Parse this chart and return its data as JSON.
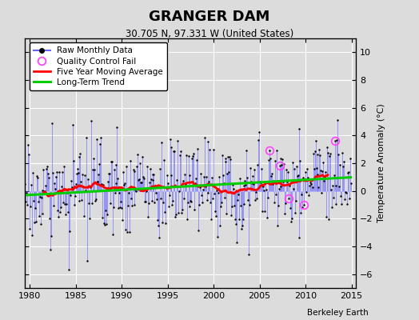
{
  "title": "GRANGER DAM",
  "subtitle": "30.705 N, 97.331 W (United States)",
  "ylabel": "Temperature Anomaly (°C)",
  "xlabel_credit": "Berkeley Earth",
  "xlim": [
    1979.5,
    2015.5
  ],
  "ylim": [
    -7,
    11
  ],
  "yticks": [
    -6,
    -4,
    -2,
    0,
    2,
    4,
    6,
    8,
    10
  ],
  "xticks": [
    1980,
    1985,
    1990,
    1995,
    2000,
    2005,
    2010,
    2015
  ],
  "bg_color": "#dcdcdc",
  "grid_color": "#ffffff",
  "raw_line_color": "#6666ff",
  "raw_dot_color": "#000000",
  "moving_avg_color": "#ff0000",
  "trend_color": "#00cc00",
  "qc_fail_color": "#ff44ff",
  "seed": 17,
  "n_years": 36,
  "start_year": 1979,
  "noise_std": 1.8,
  "trend_slope": 0.028,
  "trend_intercept": -0.25
}
